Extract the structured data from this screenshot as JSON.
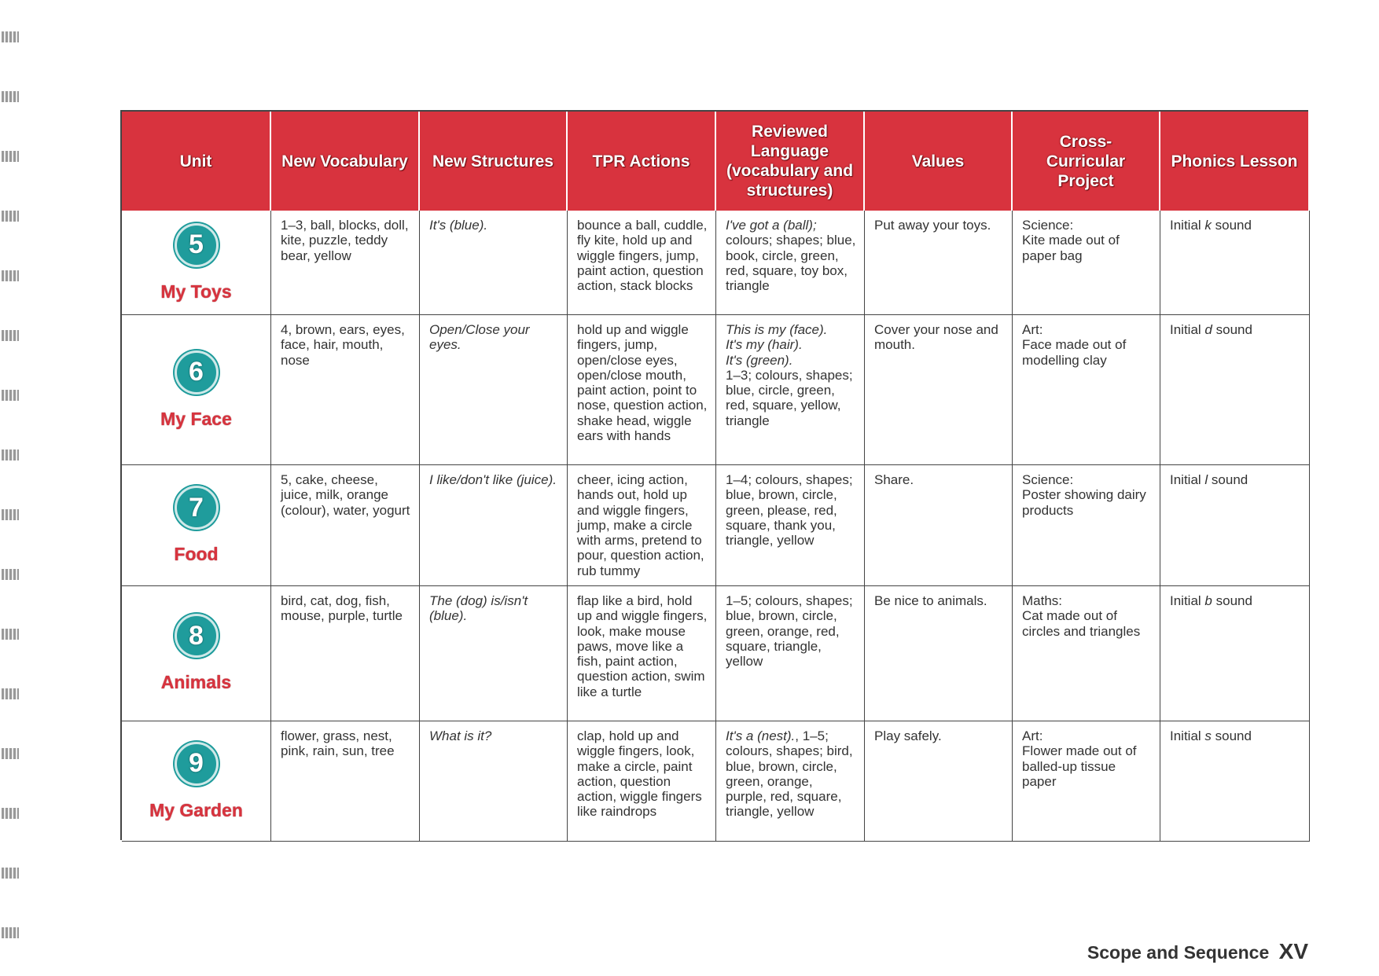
{
  "table": {
    "headers": [
      "Unit",
      "New Vocabulary",
      "New Structures",
      "TPR Actions",
      "Reviewed Language (vocabulary and structures)",
      "Values",
      "Cross-Curricular Project",
      "Phonics Lesson"
    ],
    "rows": [
      {
        "number": "5",
        "name": "My Toys",
        "cells": [
          [
            {
              "text": "1–3, ball, blocks, doll, kite, puzzle, teddy bear, yellow"
            }
          ],
          [
            {
              "text": "It's (blue).",
              "italic": true
            }
          ],
          [
            {
              "text": "bounce a ball, cuddle, fly kite, hold up and wiggle fingers, jump, paint action, question action, stack blocks"
            }
          ],
          [
            {
              "text": "I've got a (ball);",
              "italic": true
            },
            {
              "text": " colours; shapes; blue, book, circle, green, red, square, toy box, triangle"
            }
          ],
          [
            {
              "text": "Put away your toys."
            }
          ],
          [
            {
              "text": "Science:\nKite made out of paper bag"
            }
          ],
          [
            {
              "text": "Initial "
            },
            {
              "text": "k",
              "italic": true
            },
            {
              "text": " sound"
            }
          ]
        ]
      },
      {
        "number": "6",
        "name": "My Face",
        "cells": [
          [
            {
              "text": "4, brown, ears, eyes, face, hair, mouth, nose"
            }
          ],
          [
            {
              "text": "Open/Close your eyes.",
              "italic": true
            }
          ],
          [
            {
              "text": "hold up and wiggle fingers, jump, open/close eyes, open/close mouth, paint action, point to nose, question action, shake head, wiggle ears with hands"
            }
          ],
          [
            {
              "text": "This is my (face).\nIt's my (hair).\nIt's (green).",
              "italic": true
            },
            {
              "text": "\n1–3; colours, shapes; blue, circle, green, red, square, yellow, triangle"
            }
          ],
          [
            {
              "text": "Cover your nose and mouth."
            }
          ],
          [
            {
              "text": "Art:\nFace made out of modelling clay"
            }
          ],
          [
            {
              "text": "Initial "
            },
            {
              "text": "d",
              "italic": true
            },
            {
              "text": " sound"
            }
          ]
        ]
      },
      {
        "number": "7",
        "name": "Food",
        "cells": [
          [
            {
              "text": "5, cake, cheese, juice, milk, orange (colour), water, yogurt"
            }
          ],
          [
            {
              "text": "I like/don't like (juice).",
              "italic": true
            }
          ],
          [
            {
              "text": "cheer, icing action, hands out, hold up and wiggle fingers, jump, make a circle with arms, pretend to pour, question action, rub tummy"
            }
          ],
          [
            {
              "text": "1–4; colours, shapes; blue, brown, circle, green, please, red, square, thank you, triangle, yellow"
            }
          ],
          [
            {
              "text": "Share."
            }
          ],
          [
            {
              "text": "Science:\nPoster showing dairy products"
            }
          ],
          [
            {
              "text": "Initial "
            },
            {
              "text": "l",
              "italic": true
            },
            {
              "text": " sound"
            }
          ]
        ]
      },
      {
        "number": "8",
        "name": "Animals",
        "cells": [
          [
            {
              "text": "bird, cat, dog, fish, mouse, purple, turtle"
            }
          ],
          [
            {
              "text": "The (dog) is/isn't (blue).",
              "italic": true
            }
          ],
          [
            {
              "text": "flap like a bird, hold up and wiggle fingers, look, make mouse paws, move like a fish, paint action, question action, swim like a turtle"
            }
          ],
          [
            {
              "text": "1–5; colours, shapes; blue, brown, circle, green, orange, red, square, triangle, yellow"
            }
          ],
          [
            {
              "text": "Be nice to animals."
            }
          ],
          [
            {
              "text": "Maths:\nCat made out of circles and triangles"
            }
          ],
          [
            {
              "text": "Initial "
            },
            {
              "text": "b",
              "italic": true
            },
            {
              "text": " sound"
            }
          ]
        ]
      },
      {
        "number": "9",
        "name": "My Garden",
        "cells": [
          [
            {
              "text": "flower, grass, nest, pink, rain, sun, tree"
            }
          ],
          [
            {
              "text": "What is it?",
              "italic": true
            }
          ],
          [
            {
              "text": "clap, hold up and wiggle fingers, look, make a circle, paint action, question action, wiggle fingers like raindrops"
            }
          ],
          [
            {
              "text": "It's a (nest).",
              "italic": true
            },
            {
              "text": ", 1–5; colours, shapes; bird, blue, brown, circle, green, orange, purple, red, square, triangle, yellow"
            }
          ],
          [
            {
              "text": "Play safely."
            }
          ],
          [
            {
              "text": "Art:\nFlower made out of balled-up tissue paper"
            }
          ],
          [
            {
              "text": "Initial "
            },
            {
              "text": "s",
              "italic": true
            },
            {
              "text": " sound"
            }
          ]
        ]
      }
    ]
  },
  "footer": {
    "title": "Scope and Sequence",
    "page": "XV"
  }
}
